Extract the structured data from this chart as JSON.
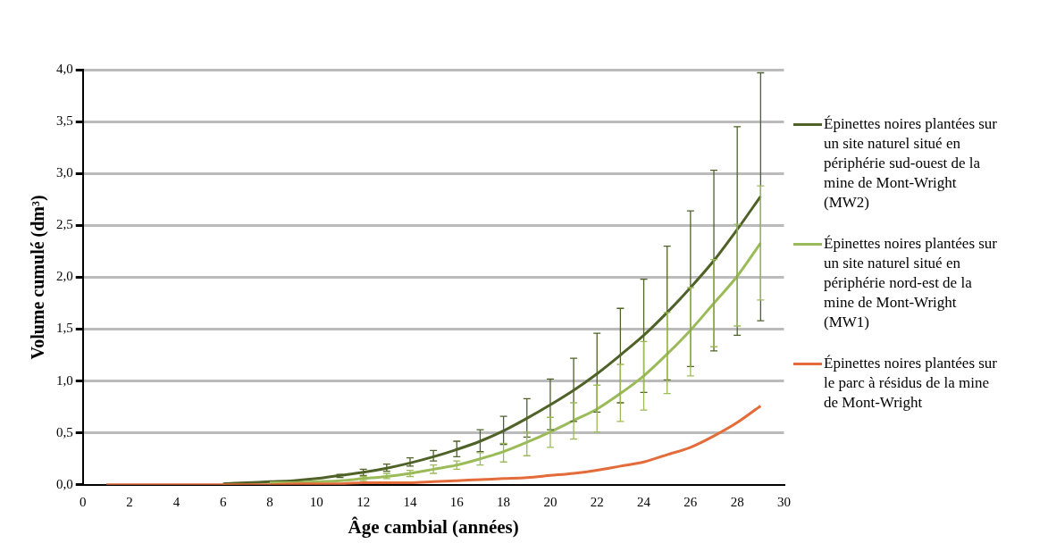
{
  "chart_data": {
    "type": "line",
    "xlabel": "Âge cambial (années)",
    "ylabel": "Volume cumulé (dm³)",
    "x": [
      1,
      2,
      3,
      4,
      5,
      6,
      7,
      8,
      9,
      10,
      11,
      12,
      13,
      14,
      15,
      16,
      17,
      18,
      19,
      20,
      21,
      22,
      23,
      24,
      25,
      26,
      27,
      28,
      29
    ],
    "xlim": [
      0,
      30
    ],
    "xticks": [
      0,
      2,
      4,
      6,
      8,
      10,
      12,
      14,
      16,
      18,
      20,
      22,
      24,
      26,
      28,
      30
    ],
    "ylim": [
      0,
      4
    ],
    "yticks": [
      {
        "value": 0,
        "label": "0,0"
      },
      {
        "value": 0.5,
        "label": "0,5"
      },
      {
        "value": 1,
        "label": "1,0"
      },
      {
        "value": 1.5,
        "label": "1,5"
      },
      {
        "value": 2,
        "label": "2,0"
      },
      {
        "value": 2.5,
        "label": "2,5"
      },
      {
        "value": 3,
        "label": "3,0"
      },
      {
        "value": 3.5,
        "label": "3,5"
      },
      {
        "value": 4,
        "label": "4,0"
      }
    ],
    "grid": "y",
    "legend": "right",
    "marker": "none",
    "line_style": "solid",
    "series": [
      {
        "name": "Épinettes noires plantées sur un site naturel situé en périphérie sud-ouest de la mine de Mont-Wright (MW2)",
        "color": "#4f6228",
        "values": [
          null,
          null,
          null,
          null,
          null,
          0.01,
          0.02,
          0.03,
          0.04,
          0.06,
          0.09,
          0.12,
          0.16,
          0.21,
          0.27,
          0.34,
          0.42,
          0.52,
          0.64,
          0.77,
          0.91,
          1.07,
          1.25,
          1.44,
          1.66,
          1.9,
          2.16,
          2.46,
          2.78
        ],
        "errors": [
          null,
          null,
          null,
          null,
          null,
          null,
          null,
          null,
          null,
          null,
          [
            0.07,
            0.1
          ],
          [
            0.09,
            0.15
          ],
          [
            0.13,
            0.2
          ],
          [
            0.18,
            0.26
          ],
          [
            0.23,
            0.33
          ],
          [
            0.27,
            0.42
          ],
          [
            0.32,
            0.53
          ],
          [
            0.39,
            0.66
          ],
          [
            0.46,
            0.83
          ],
          [
            0.53,
            1.02
          ],
          [
            0.61,
            1.22
          ],
          [
            0.7,
            1.46
          ],
          [
            0.79,
            1.7
          ],
          [
            0.89,
            1.98
          ],
          [
            1.01,
            2.3
          ],
          [
            1.14,
            2.64
          ],
          [
            1.29,
            3.03
          ],
          [
            1.44,
            3.45
          ],
          [
            1.58,
            3.97
          ]
        ]
      },
      {
        "name": "Épinettes noires plantées sur un site naturel situé en périphérie nord-est de la mine de Mont-Wright (MW1)",
        "color": "#9bbb59",
        "values": [
          null,
          null,
          null,
          null,
          null,
          null,
          null,
          0.02,
          0.02,
          0.03,
          0.04,
          0.06,
          0.08,
          0.11,
          0.15,
          0.19,
          0.25,
          0.32,
          0.41,
          0.51,
          0.62,
          0.73,
          0.88,
          1.05,
          1.26,
          1.49,
          1.75,
          2.01,
          2.33
        ],
        "errors": [
          null,
          null,
          null,
          null,
          null,
          null,
          null,
          null,
          null,
          null,
          null,
          [
            0.04,
            0.08
          ],
          [
            0.06,
            0.11
          ],
          [
            0.08,
            0.14
          ],
          [
            0.11,
            0.19
          ],
          [
            0.15,
            0.23
          ],
          [
            0.19,
            0.31
          ],
          [
            0.22,
            0.4
          ],
          [
            0.28,
            0.51
          ],
          [
            0.36,
            0.65
          ],
          [
            0.44,
            0.79
          ],
          [
            0.51,
            0.96
          ],
          [
            0.61,
            1.16
          ],
          [
            0.72,
            1.38
          ],
          [
            0.88,
            1.66
          ],
          [
            1.05,
            1.9
          ],
          [
            1.33,
            2.17
          ],
          [
            1.53,
            2.51
          ],
          [
            1.78,
            2.88
          ]
        ]
      },
      {
        "name": "Épinettes noires plantées sur le parc à résidus de la mine de Mont-Wright",
        "color": "#e46c3a",
        "values": [
          0,
          0,
          0,
          0,
          0,
          0,
          0,
          0,
          0.01,
          0.01,
          0.01,
          0.02,
          0.02,
          0.02,
          0.03,
          0.04,
          0.05,
          0.06,
          0.07,
          0.09,
          0.11,
          0.14,
          0.18,
          0.22,
          0.29,
          0.36,
          0.47,
          0.6,
          0.76
        ]
      }
    ]
  }
}
